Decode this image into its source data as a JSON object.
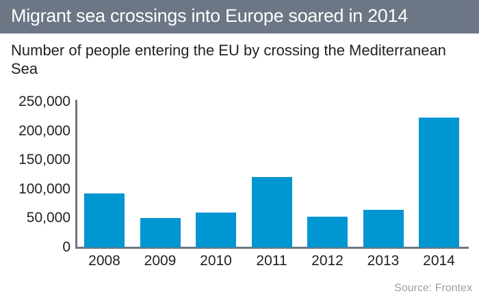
{
  "header": {
    "title": "Migrant sea crossings into Europe soared in 2014"
  },
  "subtitle": "Number of people entering the EU by crossing the Mediterranean Sea",
  "source": "Source: Frontex",
  "colors": {
    "header_bg": "#6c7684",
    "bar": "#0096d2",
    "axis": "#6c7684",
    "source_text": "#9aa0a6"
  },
  "chart_data": {
    "type": "bar",
    "title": "Migrant sea crossings into Europe soared in 2014",
    "subtitle": "Number of people entering the EU by crossing the Mediterranean Sea",
    "categories": [
      "2008",
      "2009",
      "2010",
      "2011",
      "2012",
      "2013",
      "2014"
    ],
    "values": [
      93000,
      51000,
      60000,
      121000,
      53000,
      65000,
      223000
    ],
    "xlabel": "",
    "ylabel": "",
    "ylim": [
      0,
      250000
    ],
    "yticks": [
      0,
      50000,
      100000,
      150000,
      200000,
      250000
    ],
    "ytick_labels": [
      "0",
      "50,000",
      "100,000",
      "150,000",
      "200,000",
      "250,000"
    ],
    "grid": false,
    "legend": null,
    "source": "Source: Frontex"
  }
}
